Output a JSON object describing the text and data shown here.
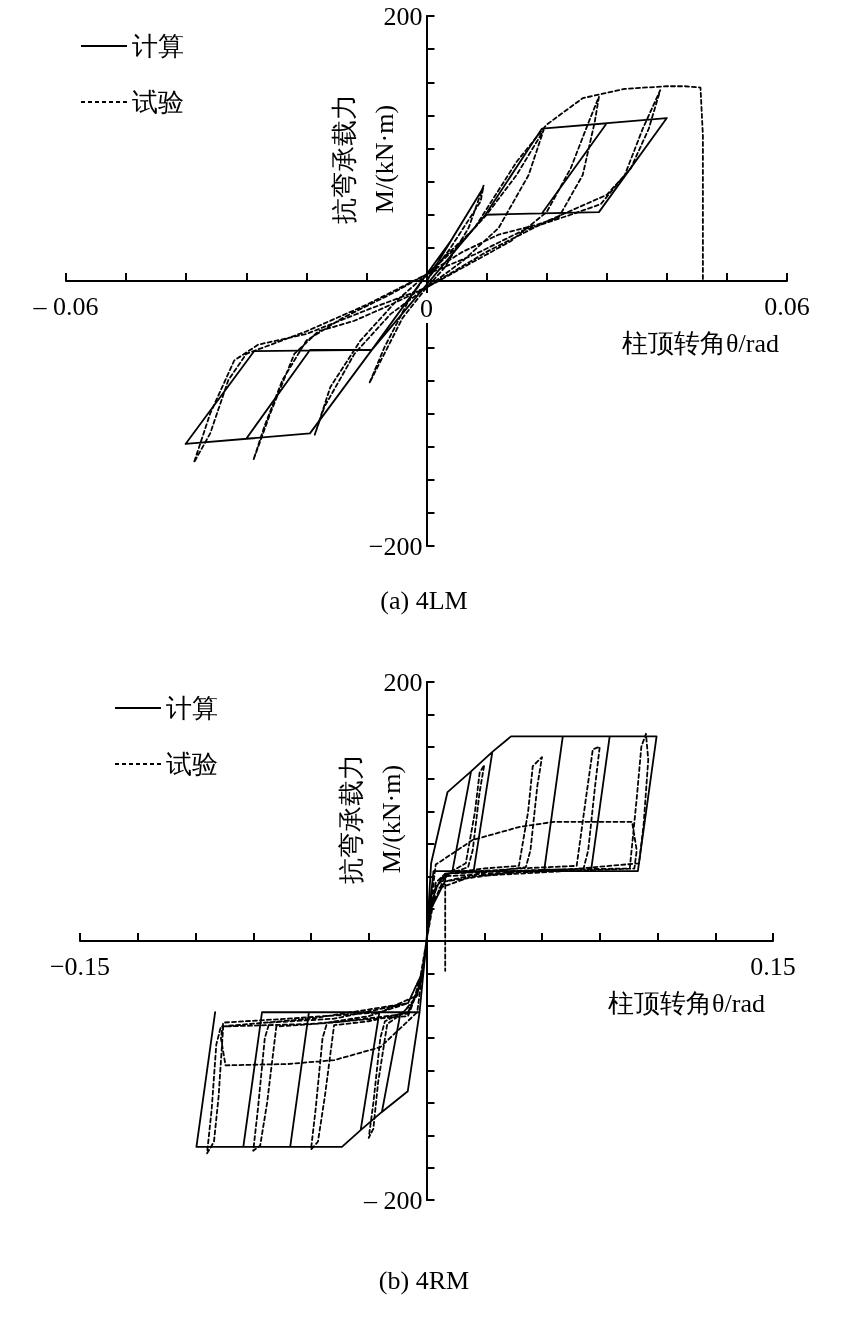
{
  "chart_data": [
    {
      "type": "line",
      "title": "(a) 4LM",
      "xlabel": "柱顶转角θ/rad",
      "ylabel": "抗弯承载力\nM/(kN·m)",
      "legend": "top left",
      "marker": "none",
      "grid": false,
      "xlim": [
        -0.06,
        0.06
      ],
      "ylim": [
        -200,
        200
      ],
      "xticks": [
        {
          "value": -0.06,
          "label": "– 0.06"
        },
        {
          "value": -0.05,
          "label": null
        },
        {
          "value": -0.04,
          "label": null
        },
        {
          "value": -0.03,
          "label": null
        },
        {
          "value": -0.02,
          "label": null
        },
        {
          "value": -0.01,
          "label": null
        },
        {
          "value": 0,
          "label": "0"
        },
        {
          "value": 0.01,
          "label": null
        },
        {
          "value": 0.02,
          "label": null
        },
        {
          "value": 0.03,
          "label": null
        },
        {
          "value": 0.04,
          "label": null
        },
        {
          "value": 0.05,
          "label": null
        },
        {
          "value": 0.06,
          "label": "0.06"
        }
      ],
      "yticks": [
        {
          "value": -200,
          "label": "−200"
        },
        {
          "value": -175,
          "label": null
        },
        {
          "value": -150,
          "label": null
        },
        {
          "value": -125,
          "label": null
        },
        {
          "value": -100,
          "label": null
        },
        {
          "value": -75,
          "label": null
        },
        {
          "value": -50,
          "label": null
        },
        {
          "value": -25,
          "label": null
        },
        {
          "value": 0,
          "label": null
        },
        {
          "value": 25,
          "label": null
        },
        {
          "value": 50,
          "label": null
        },
        {
          "value": 75,
          "label": null
        },
        {
          "value": 100,
          "label": null
        },
        {
          "value": 125,
          "label": null
        },
        {
          "value": 150,
          "label": null
        },
        {
          "value": 175,
          "label": null
        },
        {
          "value": 200,
          "label": "200"
        }
      ],
      "series": [
        {
          "name": "计算",
          "color": "#000000",
          "line_style": "solid",
          "x": [
            0,
            0.0094,
            0.004,
            -0.0091,
            -0.0194,
            -0.03,
            -0.0194,
            -0.0091,
            0.0098,
            0.0192,
            0.03,
            0.0192,
            0.0098,
            -0.0091,
            -0.0287,
            -0.0401,
            -0.0194,
            -0.0091,
            0.0098,
            0.0192,
            0.04,
            0.0287,
            0.0098
          ],
          "values": [
            0,
            70,
            30,
            -52,
            -115,
            -119,
            -52,
            -52,
            50,
            115,
            119,
            51,
            50,
            -52,
            -53,
            -123,
            -115,
            -52,
            50,
            115,
            123,
            52,
            50
          ]
        },
        {
          "name": "试验",
          "color": "#000000",
          "line_style": "dashed",
          "x": [
            0,
            0.004,
            0.009,
            0.0095,
            0.007,
            0.003,
            0,
            -0.004,
            -0.0095,
            -0.007,
            -0.003,
            0,
            0.005,
            0.01,
            0.015,
            0.019,
            0.0195,
            0.017,
            0.012,
            0.006,
            0,
            -0.006,
            -0.012,
            -0.017,
            -0.0186,
            -0.016,
            -0.011,
            -0.005,
            0,
            0.006,
            0.012,
            0.018,
            0.022,
            0.026,
            0.028,
            0.0287,
            0.027,
            0.024,
            0.02,
            0.014,
            0.006,
            0,
            -0.006,
            -0.012,
            -0.018,
            -0.022,
            -0.026,
            -0.0288,
            -0.027,
            -0.024,
            -0.02,
            -0.014,
            -0.006,
            0,
            0.008,
            0.016,
            0.024,
            0.029,
            0.033,
            0.036,
            0.0389,
            0.037,
            0.034,
            0.03,
            0.02,
            0.01,
            0,
            -0.01,
            -0.02,
            -0.028,
            -0.032,
            -0.036,
            -0.0387,
            -0.036,
            -0.033,
            -0.03,
            -0.02,
            -0.01,
            0,
            0.008,
            0.015,
            0.02,
            0.026,
            0.033,
            0.04,
            0.043,
            0.0456,
            0.046,
            0.046
          ],
          "values": [
            0,
            25,
            60,
            72,
            40,
            10,
            -5,
            -28,
            -77,
            -50,
            -15,
            5,
            25,
            50,
            80,
            110,
            114,
            80,
            40,
            15,
            -5,
            -25,
            -55,
            -95,
            -116,
            -80,
            -45,
            -15,
            5,
            22,
            35,
            42,
            48,
            80,
            120,
            139,
            120,
            85,
            52,
            30,
            10,
            -5,
            -18,
            -30,
            -38,
            -55,
            -100,
            -135,
            -110,
            -75,
            -45,
            -28,
            -10,
            5,
            20,
            38,
            50,
            58,
            80,
            115,
            144,
            115,
            85,
            65,
            45,
            22,
            -5,
            -22,
            -40,
            -48,
            -60,
            -100,
            -137,
            -115,
            -75,
            -55,
            -38,
            -18,
            5,
            40,
            90,
            118,
            138,
            145,
            147,
            147,
            146,
            110,
            0
          ]
        }
      ]
    },
    {
      "type": "line",
      "title": "(b) 4RM",
      "xlabel": "柱顶转角θ/rad",
      "ylabel": "抗弯承载力\nM/(kN·m)",
      "legend": "top left",
      "marker": "none",
      "grid": false,
      "xlim": [
        -0.15,
        0.15
      ],
      "ylim": [
        -200,
        200
      ],
      "xticks": [
        {
          "value": -0.15,
          "label": "−0.15"
        },
        {
          "value": -0.125,
          "label": null
        },
        {
          "value": -0.1,
          "label": null
        },
        {
          "value": -0.075,
          "label": null
        },
        {
          "value": -0.05,
          "label": null
        },
        {
          "value": -0.025,
          "label": null
        },
        {
          "value": 0,
          "label": null
        },
        {
          "value": 0.025,
          "label": null
        },
        {
          "value": 0.05,
          "label": null
        },
        {
          "value": 0.075,
          "label": null
        },
        {
          "value": 0.1,
          "label": null
        },
        {
          "value": 0.125,
          "label": null
        },
        {
          "value": 0.15,
          "label": "0.15"
        }
      ],
      "yticks": [
        {
          "value": -200,
          "label": "– 200"
        },
        {
          "value": -175,
          "label": null
        },
        {
          "value": -150,
          "label": null
        },
        {
          "value": -125,
          "label": null
        },
        {
          "value": -100,
          "label": null
        },
        {
          "value": -75,
          "label": null
        },
        {
          "value": -50,
          "label": null
        },
        {
          "value": -25,
          "label": null
        },
        {
          "value": 0,
          "label": null
        },
        {
          "value": 25,
          "label": null
        },
        {
          "value": 50,
          "label": null
        },
        {
          "value": 75,
          "label": null
        },
        {
          "value": 100,
          "label": null
        },
        {
          "value": 125,
          "label": null
        },
        {
          "value": 150,
          "label": null
        },
        {
          "value": 175,
          "label": null
        },
        {
          "value": 200,
          "label": "200"
        }
      ],
      "series": [
        {
          "name": "计算",
          "color": "#000000",
          "line_style": "solid",
          "x": [
            0,
            0.002,
            0.0091,
            0.0193,
            0.0112,
            0.003,
            0,
            -0.003,
            -0.0081,
            -0.0193,
            -0.0112,
            -0.003,
            0,
            0.003,
            0.0112,
            0.0193,
            0.0285,
            0.0204,
            0.003,
            0,
            -0.003,
            -0.0112,
            -0.0193,
            -0.0285,
            -0.0204,
            -0.003,
            0,
            0.003,
            0.0204,
            0.0285,
            0.0366,
            0.059,
            0.0509,
            0.003,
            0,
            -0.003,
            -0.0204,
            -0.0285,
            -0.0366,
            -0.059,
            -0.0509,
            -0.003,
            0,
            0.003,
            0.0509,
            0.059,
            0.0793,
            0.0712,
            0.003,
            0,
            -0.003,
            -0.0509,
            -0.059,
            -0.0793,
            -0.0712,
            -0.003,
            0,
            0.003,
            0.0712,
            0.0793,
            0.0996,
            0.0915,
            0.003,
            0,
            -0.003,
            -0.0712,
            -0.0793,
            -0.0996,
            -0.0915
          ],
          "values": [
            0,
            60,
            115,
            131,
            54,
            54,
            0,
            -55,
            -116,
            -132,
            -55,
            -55,
            0,
            54,
            54,
            131,
            146,
            54,
            54,
            0,
            -55,
            -55,
            -132,
            -146,
            -55,
            -55,
            0,
            54,
            54,
            146,
            158,
            158,
            54,
            54,
            0,
            -55,
            -55,
            -146,
            -159,
            -159,
            -55,
            -55,
            0,
            54,
            54,
            158,
            158,
            54,
            54,
            0,
            -55,
            -55,
            -159,
            -159,
            -55,
            -55,
            0,
            54,
            54,
            158,
            158,
            54,
            54,
            0,
            -55,
            -55,
            -159,
            -159,
            -55
          ]
        },
        {
          "name": "试验",
          "color": "#000000",
          "line_style": "dashed",
          "x": [
            0,
            0.002,
            0.006,
            0.012,
            0.017,
            0.021,
            0.023,
            0.025,
            0.023,
            0.02,
            0.018,
            0.01,
            0.004,
            0.001,
            0,
            -0.002,
            -0.006,
            -0.012,
            -0.017,
            -0.021,
            -0.023,
            -0.025,
            -0.023,
            -0.02,
            -0.018,
            -0.01,
            -0.004,
            -0.001,
            0,
            0.002,
            0.008,
            0.025,
            0.04,
            0.044,
            0.046,
            0.05,
            0.048,
            0.045,
            0.043,
            0.025,
            0.008,
            0.002,
            0,
            -0.002,
            -0.008,
            -0.025,
            -0.04,
            -0.044,
            -0.047,
            -0.05,
            -0.048,
            -0.045,
            -0.043,
            -0.025,
            -0.008,
            -0.002,
            0,
            0.004,
            0.02,
            0.04,
            0.055,
            0.089,
            0.091,
            0.09,
            0.06,
            0.02,
            0.004,
            0,
            -0.004,
            -0.02,
            -0.04,
            -0.06,
            -0.087,
            -0.089,
            -0.088,
            -0.06,
            -0.02,
            -0.004,
            0,
            0.002,
            0.008,
            0.04,
            0.065,
            0.069,
            0.072,
            0.075,
            0.073,
            0.07,
            0.068,
            0.04,
            0.008,
            0.002,
            0,
            -0.002,
            -0.008,
            -0.04,
            -0.065,
            -0.069,
            -0.072,
            -0.075,
            -0.073,
            -0.07,
            -0.068,
            -0.04,
            -0.008,
            -0.002,
            0,
            0.002,
            0.008,
            0.05,
            0.088,
            0.091,
            0.093,
            0.095,
            0.096,
            0.094,
            0.092,
            0.06,
            0.008,
            0.002,
            0,
            -0.002,
            -0.008,
            -0.05,
            -0.088,
            -0.09,
            -0.092,
            -0.095,
            -0.093,
            -0.091,
            -0.089,
            -0.05,
            -0.008,
            -0.002,
            0,
            0.004,
            0.0081,
            0.0081
          ],
          "values": [
            0,
            30,
            48,
            55,
            60,
            100,
            130,
            136,
            115,
            70,
            57,
            52,
            42,
            15,
            0,
            -25,
            -48,
            -58,
            -64,
            -110,
            -145,
            -152,
            -125,
            -75,
            -62,
            -55,
            -42,
            -15,
            0,
            35,
            52,
            56,
            58,
            100,
            135,
            142,
            120,
            70,
            57,
            53,
            46,
            25,
            0,
            -30,
            -55,
            -62,
            -65,
            -120,
            -155,
            -161,
            -130,
            -75,
            -63,
            -58,
            -48,
            -25,
            0,
            59,
            78,
            88,
            92,
            92,
            70,
            56,
            54,
            50,
            40,
            0,
            -55,
            -82,
            -92,
            -95,
            -96,
            -75,
            -63,
            -60,
            -55,
            -42,
            0,
            35,
            52,
            56,
            58,
            110,
            148,
            150,
            120,
            70,
            56,
            54,
            46,
            25,
            0,
            -30,
            -56,
            -63,
            -66,
            -125,
            -158,
            -162,
            -130,
            -75,
            -63,
            -60,
            -48,
            -25,
            0,
            35,
            52,
            55,
            56,
            110,
            150,
            160,
            140,
            90,
            60,
            55,
            50,
            25,
            0,
            -30,
            -58,
            -64,
            -66,
            -120,
            -155,
            -164,
            -130,
            -80,
            -66,
            -60,
            -48,
            -25,
            0,
            45,
            52,
            -23
          ]
        }
      ]
    }
  ]
}
